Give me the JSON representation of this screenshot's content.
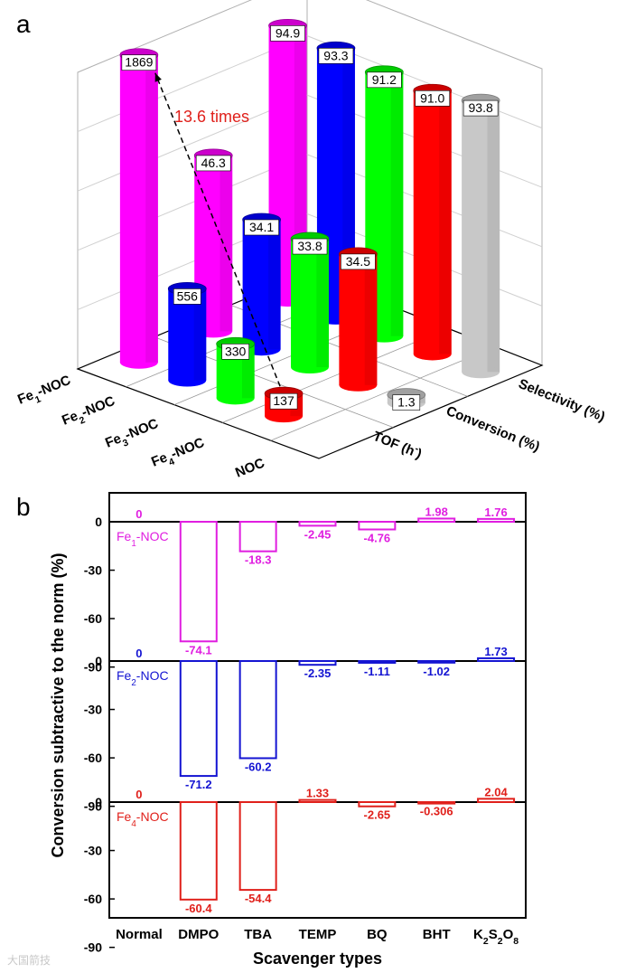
{
  "panel_a_label": "a",
  "panel_b_label": "b",
  "watermark": "大国箭技",
  "chart_data": [
    {
      "type": "bar",
      "subtype": "3d-cylinder",
      "categories": [
        "Fe1-NOC",
        "Fe2-NOC",
        "Fe3-NOC",
        "Fe4-NOC",
        "NOC"
      ],
      "series": [
        {
          "name": "TOF (h⁻)",
          "values": [
            1869,
            556,
            330,
            137,
            null
          ],
          "labels": [
            "1869",
            "556",
            "330",
            "137",
            ""
          ]
        },
        {
          "name": "Conversion (%)",
          "values": [
            46.3,
            34.1,
            33.8,
            34.5,
            1.3
          ],
          "labels": [
            "46.3",
            "34.1",
            "33.8",
            "34.5",
            "1.3"
          ]
        },
        {
          "name": "Selectivity (%)",
          "values": [
            94.9,
            93.3,
            91.2,
            91.0,
            93.8
          ],
          "labels": [
            "94.9",
            "93.3",
            "91.2",
            "91.0",
            "93.8"
          ]
        }
      ],
      "category_labels": [
        {
          "main": "Fe",
          "sub": "1",
          "rest": "-NOC"
        },
        {
          "main": "Fe",
          "sub": "2",
          "rest": "-NOC"
        },
        {
          "main": "Fe",
          "sub": "3",
          "rest": "-NOC"
        },
        {
          "main": "Fe",
          "sub": "4",
          "rest": "-NOC"
        },
        {
          "main": "NOC",
          "sub": "",
          "rest": ""
        }
      ],
      "axis_labels": {
        "tof": "TOF (",
        "tof_unit": "h",
        "tof_sup": "-",
        "tof_end": ")",
        "conversion": "Conversion (%)",
        "selectivity": "Selectivity (%)"
      },
      "colors": [
        "#ff00ff",
        "#0000ff",
        "#00ff00",
        "#ff0000",
        "#c8c8c8"
      ],
      "annotation": {
        "text": "13.6 times",
        "color": "#e0201b",
        "from": "Fe4-NOC TOF",
        "to": "Fe1-NOC TOF"
      }
    },
    {
      "type": "bar",
      "subtype": "stacked-panels",
      "title": "",
      "xlabel": "Scavenger types",
      "ylabel": "Conversion subtractive to the norm (%)",
      "categories": [
        "Normal",
        "DMPO",
        "TBA",
        "TEMP",
        "BQ",
        "BHT",
        "K2S2O8"
      ],
      "category_display": [
        {
          "parts": [
            {
              "t": "Normal",
              "s": false
            }
          ]
        },
        {
          "parts": [
            {
              "t": "DMPO",
              "s": false
            }
          ]
        },
        {
          "parts": [
            {
              "t": "TBA",
              "s": false
            }
          ]
        },
        {
          "parts": [
            {
              "t": "TEMP",
              "s": false
            }
          ]
        },
        {
          "parts": [
            {
              "t": "BQ",
              "s": false
            }
          ]
        },
        {
          "parts": [
            {
              "t": "BHT",
              "s": false
            }
          ]
        },
        {
          "parts": [
            {
              "t": "K",
              "s": false
            },
            {
              "t": "2",
              "s": true
            },
            {
              "t": "S",
              "s": false
            },
            {
              "t": "2",
              "s": true
            },
            {
              "t": "O",
              "s": false
            },
            {
              "t": "8",
              "s": true
            }
          ]
        }
      ],
      "ylim": [
        -90,
        0
      ],
      "yticks": [
        0,
        -30,
        -60,
        -90
      ],
      "series": [
        {
          "name": "Fe1-NOC",
          "name_main": "Fe",
          "name_sub": "1",
          "name_rest": "-NOC",
          "color": "#e01ee0",
          "values": [
            0,
            -74.1,
            -18.3,
            -2.45,
            -4.76,
            1.98,
            1.76
          ],
          "labels": [
            "0",
            "-74.1",
            "-18.3",
            "-2.45",
            "-4.76",
            "1.98",
            "1.76"
          ]
        },
        {
          "name": "Fe2-NOC",
          "name_main": "Fe",
          "name_sub": "2",
          "name_rest": "-NOC",
          "color": "#1414d2",
          "values": [
            0,
            -71.2,
            -60.2,
            -2.35,
            -1.11,
            -1.02,
            1.73
          ],
          "labels": [
            "0",
            "-71.2",
            "-60.2",
            "-2.35",
            "-1.11",
            "-1.02",
            "1.73"
          ]
        },
        {
          "name": "Fe4-NOC",
          "name_main": "Fe",
          "name_sub": "4",
          "name_rest": "-NOC",
          "color": "#e0201b",
          "values": [
            0,
            -60.4,
            -54.4,
            1.33,
            -2.65,
            -0.306,
            2.04
          ],
          "labels": [
            "0",
            "-60.4",
            "-54.4",
            "1.33",
            "-2.65",
            "-0.306",
            "2.04"
          ]
        }
      ]
    }
  ]
}
